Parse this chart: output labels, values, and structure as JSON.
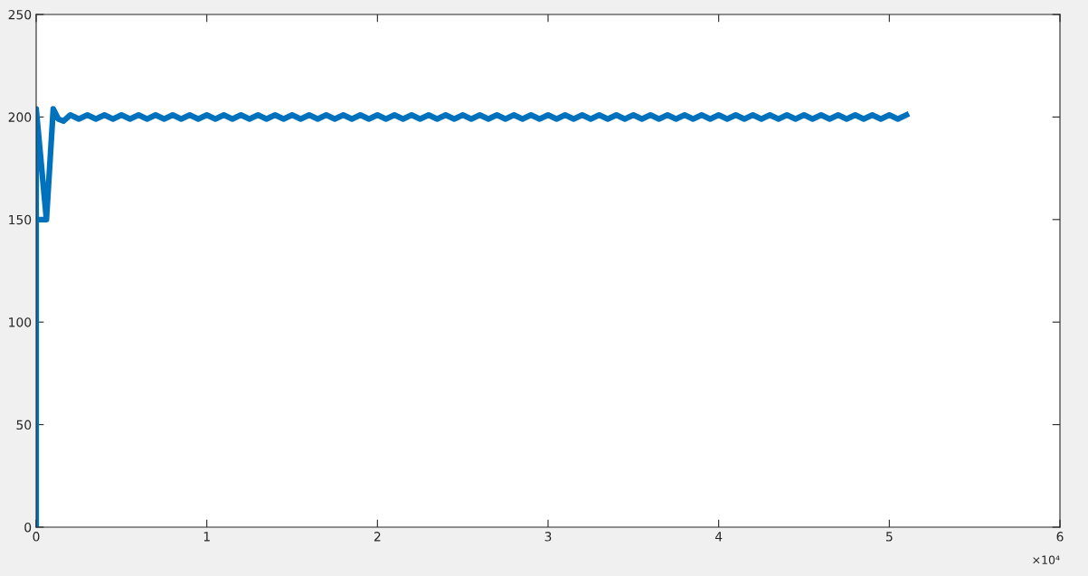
{
  "chart_data": {
    "type": "line",
    "annotations": [
      "×10⁴"
    ],
    "series": [
      {
        "color": "#0072bd",
        "x": [
          0,
          0,
          0.06,
          0,
          0.06,
          0.1,
          0.13,
          0.16,
          0.2,
          0.25,
          0.3,
          0.35,
          0.4,
          0.45,
          0.5,
          0.55,
          0.6,
          0.65,
          0.7,
          0.75,
          0.8,
          0.85,
          0.9,
          0.95,
          1.0,
          1.05,
          1.1,
          1.15,
          1.2,
          1.25,
          1.3,
          1.35,
          1.4,
          1.45,
          1.5,
          1.55,
          1.6,
          1.65,
          1.7,
          1.75,
          1.8,
          1.85,
          1.9,
          1.95,
          2.0,
          2.05,
          2.1,
          2.15,
          2.2,
          2.25,
          2.3,
          2.35,
          2.4,
          2.45,
          2.5,
          2.55,
          2.6,
          2.65,
          2.7,
          2.75,
          2.8,
          2.85,
          2.9,
          2.95,
          3.0,
          3.05,
          3.1,
          3.15,
          3.2,
          3.25,
          3.3,
          3.35,
          3.4,
          3.45,
          3.5,
          3.55,
          3.6,
          3.65,
          3.7,
          3.75,
          3.8,
          3.85,
          3.9,
          3.95,
          4.0,
          4.05,
          4.1,
          4.15,
          4.2,
          4.25,
          4.3,
          4.35,
          4.4,
          4.45,
          4.5,
          4.55,
          4.6,
          4.65,
          4.7,
          4.75,
          4.8,
          4.85,
          4.9,
          4.95,
          5.0,
          5.05,
          5.1
        ],
        "values": [
          0,
          204,
          150,
          150,
          150,
          204,
          199,
          198,
          201,
          199,
          201,
          199,
          201,
          199,
          201,
          199,
          201,
          199,
          201,
          199,
          201,
          199,
          201,
          199,
          201,
          199,
          201,
          199,
          201,
          199,
          201,
          199,
          201,
          199,
          201,
          199,
          201,
          199,
          201,
          199,
          201,
          199,
          201,
          199,
          201,
          199,
          201,
          199,
          201,
          199,
          201,
          199,
          201,
          199,
          201,
          199,
          201,
          199,
          201,
          199,
          201,
          199,
          201,
          199,
          201,
          199,
          201,
          199,
          201,
          199,
          201,
          199,
          201,
          199,
          201,
          199,
          201,
          199,
          201,
          199,
          201,
          199,
          201,
          199,
          201,
          199,
          201,
          199,
          201,
          199,
          201,
          199,
          201,
          199,
          201,
          199,
          201,
          199,
          201,
          199,
          201,
          199,
          201,
          199,
          201,
          199,
          201
        ]
      }
    ],
    "xlim": [
      0,
      6
    ],
    "xticks": [
      0,
      1,
      2,
      3,
      4,
      5,
      6
    ],
    "ylim": [
      0,
      250
    ],
    "yticks": [
      0,
      50,
      100,
      150,
      200,
      250
    ],
    "grid": false,
    "marker": "none",
    "line_style": "solid"
  }
}
